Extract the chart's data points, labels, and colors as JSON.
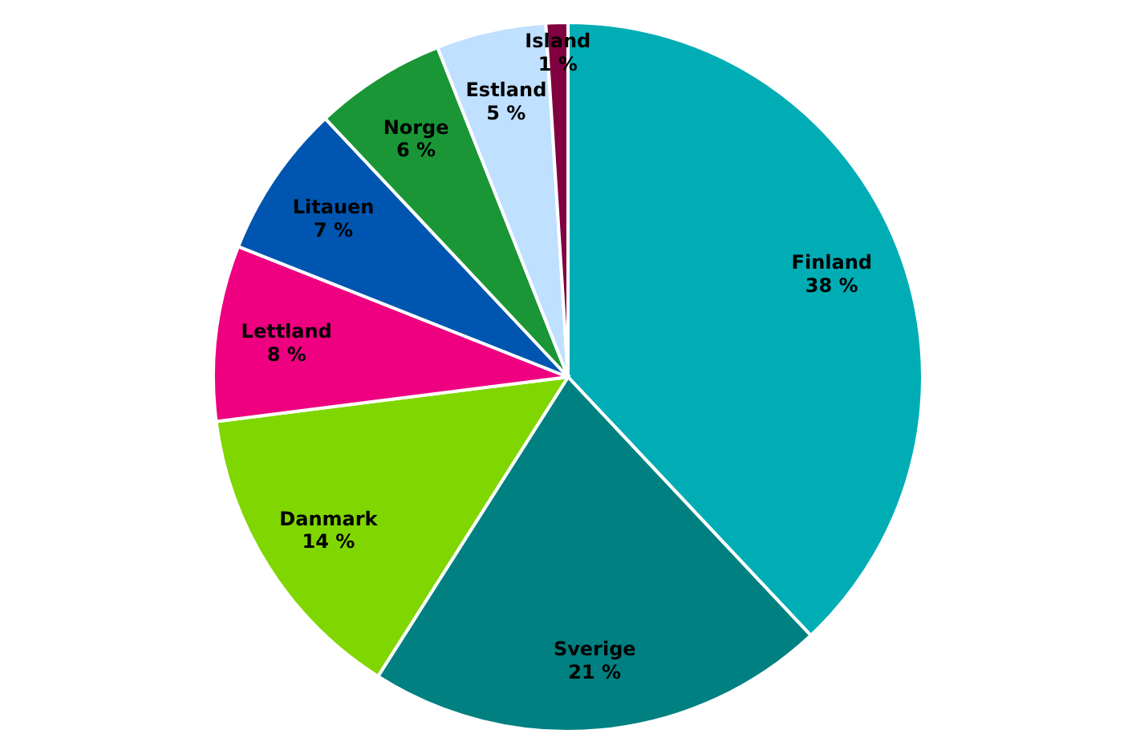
{
  "chart_data": {
    "type": "pie",
    "categories": [
      "Finland",
      "Sverige",
      "Danmark",
      "Lettland",
      "Litauen",
      "Norge",
      "Estland",
      "Island"
    ],
    "values": [
      38,
      21,
      14,
      8,
      7,
      6,
      5,
      1
    ],
    "value_labels": [
      "38 %",
      "21 %",
      "14 %",
      "8 %",
      "7 %",
      "6 %",
      "5 %",
      "1 %"
    ],
    "colors": [
      "#00adb5",
      "#008080",
      "#80d600",
      "#ee0080",
      "#0055b0",
      "#1a9636",
      "#bfe0ff",
      "#800040"
    ]
  }
}
